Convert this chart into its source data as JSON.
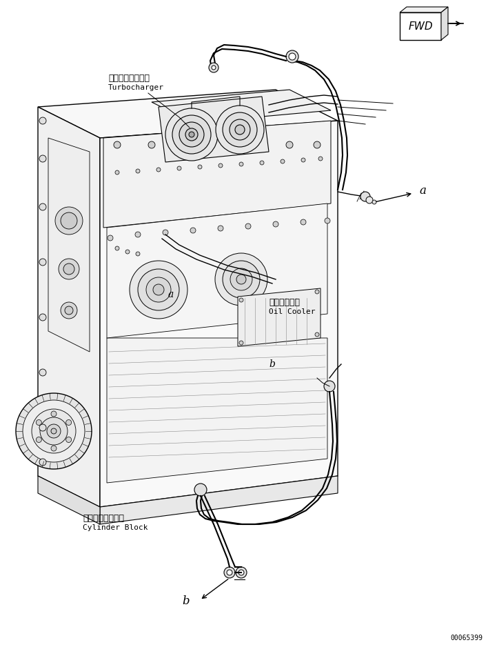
{
  "bg_color": "#ffffff",
  "line_color": "#000000",
  "fig_width": 7.08,
  "fig_height": 9.38,
  "dpi": 100,
  "labels": {
    "turbocharger_jp": "ターボチャージャ",
    "turbocharger_en": "Turbocharger",
    "oil_cooler_jp": "オイルクーラ",
    "oil_cooler_en": "Oil Cooler",
    "cylinder_block_jp": "シリンダブロック",
    "cylinder_block_en": "Cylinder Block",
    "part_number": "00065399",
    "fwd": "FWD",
    "label_a": "a",
    "label_b": "b"
  },
  "colors": {
    "outline": "#000000",
    "fill": "#ffffff"
  }
}
